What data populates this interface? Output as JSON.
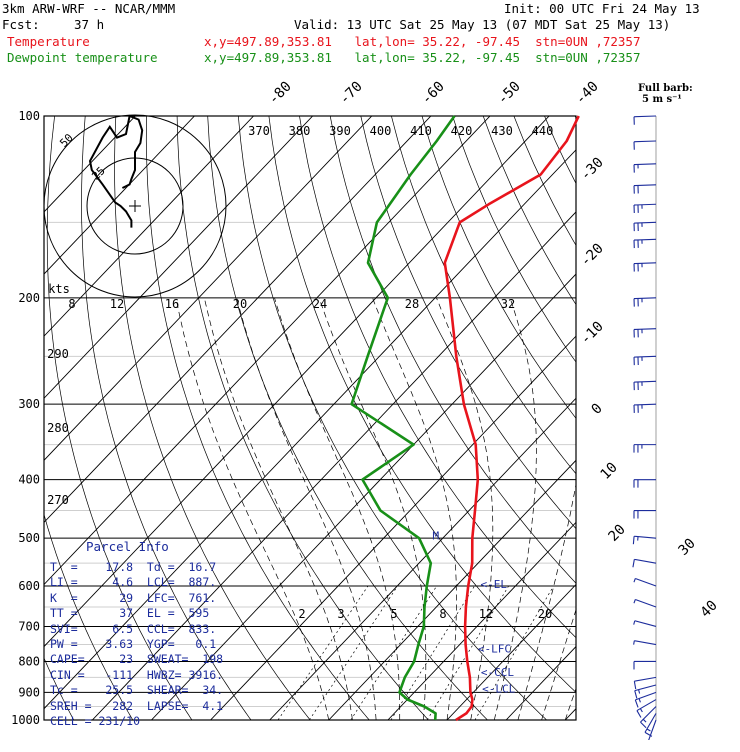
{
  "header": {
    "model": "3km ARW-WRF -- NCAR/MMM",
    "init": "Init: 00 UTC Fri 24 May 13",
    "fcst_label": "Fcst:",
    "fcst_value": "37 h",
    "valid": "Valid: 13 UTC Sat 25 May 13 (07 MDT Sat 25 May 13)",
    "temp_label": "Temperature",
    "temp_info": "x,y=497.89,353.81   lat,lon= 35.22, -97.45  stn=0UN ,72357",
    "dew_label": "Dewpoint temperature",
    "dew_info": "x,y=497.89,353.81   lat,lon= 35.22, -97.45  stn=0UN ,72357"
  },
  "barb_legend": {
    "line1": "Full barb:",
    "line2": "5 m s⁻¹"
  },
  "colors": {
    "temperature": "#e8141c",
    "dewpoint": "#189018",
    "info": "#1c2c9c",
    "barbs": "#1c2c9c",
    "grid": "#000000"
  },
  "chart_data": {
    "type": "skew-t",
    "pressure_levels": [
      100,
      200,
      300,
      400,
      500,
      600,
      700,
      800,
      900,
      1000
    ],
    "isotherm_labels": [
      "-80",
      "-70",
      "-60",
      "-50",
      "-40",
      "-30",
      "-20",
      "-10",
      "0",
      "10",
      "20",
      "30",
      "40"
    ],
    "theta_labels": [
      "370",
      "380",
      "390",
      "400",
      "410",
      "420",
      "430",
      "440"
    ],
    "theta_low_labels": [
      "290",
      "280",
      "270"
    ],
    "mixing_ratio_labels": [
      "2",
      "3",
      "5",
      "8",
      "12",
      "20"
    ],
    "scale_labels": [
      "kts",
      "8",
      "12",
      "16",
      "20",
      "24",
      "28",
      "32"
    ],
    "temperature_profile": [
      {
        "p": 1000,
        "t": 21.5
      },
      {
        "p": 975,
        "t": 22.2
      },
      {
        "p": 950,
        "t": 22.0
      },
      {
        "p": 925,
        "t": 21.0
      },
      {
        "p": 900,
        "t": 19.5
      },
      {
        "p": 850,
        "t": 17.0
      },
      {
        "p": 800,
        "t": 14.0
      },
      {
        "p": 750,
        "t": 11.0
      },
      {
        "p": 700,
        "t": 8.0
      },
      {
        "p": 650,
        "t": 5.0
      },
      {
        "p": 600,
        "t": 2.0
      },
      {
        "p": 550,
        "t": -1.0
      },
      {
        "p": 500,
        "t": -5.0
      },
      {
        "p": 450,
        "t": -9.0
      },
      {
        "p": 400,
        "t": -13.5
      },
      {
        "p": 350,
        "t": -19.5
      },
      {
        "p": 300,
        "t": -28.0
      },
      {
        "p": 250,
        "t": -37.0
      },
      {
        "p": 200,
        "t": -47.5
      },
      {
        "p": 175,
        "t": -54.0
      },
      {
        "p": 150,
        "t": -58.0
      },
      {
        "p": 140,
        "t": -56.0
      },
      {
        "p": 125,
        "t": -52.0
      },
      {
        "p": 110,
        "t": -53.0
      },
      {
        "p": 100,
        "t": -55.0
      }
    ],
    "dewpoint_profile": [
      {
        "p": 1000,
        "td": 18.0
      },
      {
        "p": 975,
        "td": 17.0
      },
      {
        "p": 950,
        "td": 14.0
      },
      {
        "p": 925,
        "td": 10.0
      },
      {
        "p": 900,
        "td": 7.5
      },
      {
        "p": 850,
        "td": 6.0
      },
      {
        "p": 800,
        "td": 5.0
      },
      {
        "p": 750,
        "td": 3.0
      },
      {
        "p": 700,
        "td": 1.0
      },
      {
        "p": 650,
        "td": -2.0
      },
      {
        "p": 600,
        "td": -5.0
      },
      {
        "p": 550,
        "td": -8.0
      },
      {
        "p": 500,
        "td": -14.0
      },
      {
        "p": 450,
        "td": -25.0
      },
      {
        "p": 400,
        "td": -33.0
      },
      {
        "p": 350,
        "td": -30.0
      },
      {
        "p": 300,
        "td": -47.0
      },
      {
        "p": 250,
        "td": -52.0
      },
      {
        "p": 200,
        "td": -58.0
      },
      {
        "p": 175,
        "td": -67.0
      },
      {
        "p": 150,
        "td": -72.0
      },
      {
        "p": 125,
        "td": -74.0
      },
      {
        "p": 110,
        "td": -75.0
      },
      {
        "p": 100,
        "td": -76.0
      }
    ],
    "parcel_markers": [
      {
        "label": "<-EL",
        "p": 595
      },
      {
        "label": "<-LFC",
        "p": 761
      },
      {
        "label": "<-CCL",
        "p": 833
      },
      {
        "label": "<-LCL",
        "p": 887
      }
    ],
    "parcel_marker_m": {
      "label": "M",
      "p": 495
    },
    "wind_barbs": [
      {
        "p": 1000,
        "spd": 10,
        "dir": 200
      },
      {
        "p": 975,
        "spd": 15,
        "dir": 210
      },
      {
        "p": 950,
        "spd": 15,
        "dir": 225
      },
      {
        "p": 925,
        "spd": 15,
        "dir": 240
      },
      {
        "p": 900,
        "spd": 15,
        "dir": 250
      },
      {
        "p": 875,
        "spd": 15,
        "dir": 255
      },
      {
        "p": 850,
        "spd": 10,
        "dir": 260
      },
      {
        "p": 800,
        "spd": 10,
        "dir": 270
      },
      {
        "p": 750,
        "spd": 5,
        "dir": 280
      },
      {
        "p": 700,
        "spd": 5,
        "dir": 285
      },
      {
        "p": 650,
        "spd": 5,
        "dir": 290
      },
      {
        "p": 600,
        "spd": 5,
        "dir": 290
      },
      {
        "p": 550,
        "spd": 10,
        "dir": 280
      },
      {
        "p": 500,
        "spd": 15,
        "dir": 275
      },
      {
        "p": 450,
        "spd": 20,
        "dir": 270
      },
      {
        "p": 400,
        "spd": 20,
        "dir": 270
      },
      {
        "p": 350,
        "spd": 25,
        "dir": 270
      },
      {
        "p": 300,
        "spd": 25,
        "dir": 268
      },
      {
        "p": 275,
        "spd": 25,
        "dir": 268
      },
      {
        "p": 250,
        "spd": 25,
        "dir": 268
      },
      {
        "p": 225,
        "spd": 25,
        "dir": 268
      },
      {
        "p": 200,
        "spd": 25,
        "dir": 268
      },
      {
        "p": 175,
        "spd": 25,
        "dir": 268
      },
      {
        "p": 160,
        "spd": 25,
        "dir": 268
      },
      {
        "p": 150,
        "spd": 25,
        "dir": 268
      },
      {
        "p": 140,
        "spd": 25,
        "dir": 268
      },
      {
        "p": 130,
        "spd": 20,
        "dir": 268
      },
      {
        "p": 120,
        "spd": 15,
        "dir": 268
      },
      {
        "p": 110,
        "spd": 10,
        "dir": 268
      },
      {
        "p": 100,
        "spd": 10,
        "dir": 268
      }
    ],
    "hodograph": {
      "ring_labels": [
        "50",
        "25"
      ],
      "points": [
        [
          -7,
          10
        ],
        [
          -3,
          12
        ],
        [
          -2,
          15
        ],
        [
          0,
          20
        ],
        [
          0,
          30
        ],
        [
          3,
          35
        ],
        [
          4,
          42
        ],
        [
          2,
          48
        ],
        [
          -3,
          50
        ],
        [
          -5,
          40
        ],
        [
          -10,
          38
        ],
        [
          -14,
          44
        ],
        [
          -18,
          38
        ],
        [
          -25,
          25
        ],
        [
          -24,
          20
        ],
        [
          -18,
          12
        ],
        [
          -11,
          2
        ],
        [
          -8,
          0
        ],
        [
          -5,
          -3
        ],
        [
          -2,
          -8
        ],
        [
          -2,
          -12
        ]
      ]
    }
  },
  "parcel_info": {
    "title": "Parcel Info",
    "rows": [
      "T  =    17.8  Td =  16.7",
      "LI =     4.6  LCL=  887.",
      "K  =      29  LFC=  761.",
      "TT =      37  EL =  595",
      "SVI=     6.5  CCL=  833.",
      "PW =    3.63  YGP=   0.1",
      "CAPE=     23  SWEAT=  198",
      "CIN =   -111  HWBZ= 3916.",
      "Tc =    25.5  SHEAR=  34.",
      "SREH =   282  LAPSE=  4.1",
      "CELL = 231/10"
    ]
  }
}
